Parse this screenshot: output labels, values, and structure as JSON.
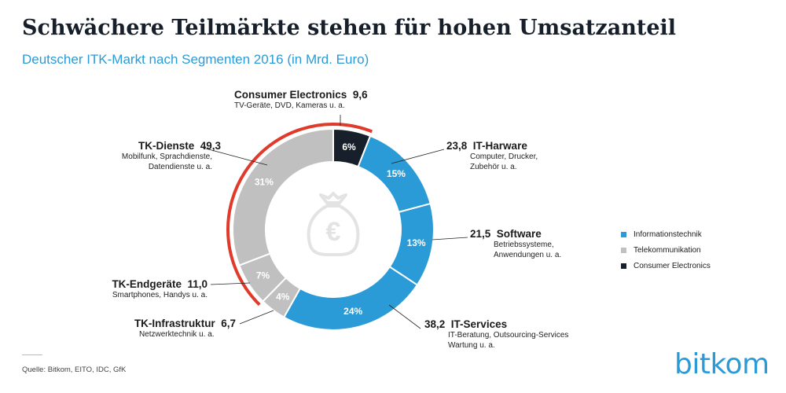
{
  "title": "Schwächere Teilmärkte stehen für hohen Umsatzanteil",
  "subtitle": "Deutscher ITK-Markt nach Segmenten 2016 (in Mrd. Euro)",
  "source": "Quelle: Bitkom, EITO, IDC, GfK",
  "logo": "bitkom",
  "colors": {
    "informationstechnik": "#2a9bd7",
    "telekommunikation": "#c0c0c0",
    "consumer_electronics": "#17202a",
    "highlight_arc": "#e03a2b",
    "center_icon": "#e3e3e3"
  },
  "icon": "money-bag-euro-icon",
  "legend": [
    {
      "name": "Informationstechnik",
      "color": "#2a9bd7"
    },
    {
      "name": "Telekommunikation",
      "color": "#c0c0c0"
    },
    {
      "name": "Consumer Electronics",
      "color": "#17202a"
    }
  ],
  "chart_data": {
    "type": "pie",
    "donut": true,
    "unit": "Mrd. Euro",
    "segments": [
      {
        "name": "Consumer Electronics",
        "value": 9.6,
        "value_label": "9,6",
        "percent": 6,
        "percent_label": "6%",
        "group": "Consumer Electronics",
        "description": "TV-Geräte, DVD, Kameras u. a."
      },
      {
        "name": "IT-Harware",
        "value": 23.8,
        "value_label": "23,8",
        "percent": 15,
        "percent_label": "15%",
        "group": "Informationstechnik",
        "description": "Computer, Drucker, Zubehör u. a."
      },
      {
        "name": "Software",
        "value": 21.5,
        "value_label": "21,5",
        "percent": 13,
        "percent_label": "13%",
        "group": "Informationstechnik",
        "description": "Betriebssysteme, Anwendungen u. a."
      },
      {
        "name": "IT-Services",
        "value": 38.2,
        "value_label": "38,2",
        "percent": 24,
        "percent_label": "24%",
        "group": "Informationstechnik",
        "description": "IT-Beratung, Outsourcing-Services Wartung u. a."
      },
      {
        "name": "TK-Infrastruktur",
        "value": 6.7,
        "value_label": "6,7",
        "percent": 4,
        "percent_label": "4%",
        "group": "Telekommunikation",
        "description": "Netzwerktechnik u. a."
      },
      {
        "name": "TK-Endgeräte",
        "value": 11.0,
        "value_label": "11,0",
        "percent": 7,
        "percent_label": "7%",
        "group": "Telekommunikation",
        "description": "Smartphones, Handys u. a."
      },
      {
        "name": "TK-Dienste",
        "value": 49.3,
        "value_label": "49,3",
        "percent": 31,
        "percent_label": "31%",
        "group": "Telekommunikation",
        "description": "Mobilfunk, Sprachdienste, Datendienste u. a."
      }
    ],
    "highlighted_segments": [
      "Consumer Electronics",
      "TK-Dienste",
      "TK-Endgeräte"
    ],
    "legend_position": "right"
  }
}
